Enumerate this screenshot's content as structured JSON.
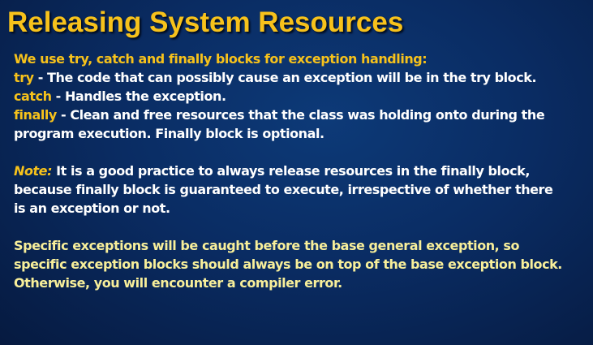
{
  "slide": {
    "title": "Releasing System Resources",
    "intro": "We use try, catch and finally blocks for exception handling:",
    "items": [
      {
        "keyword": "try",
        "text": " - The code that can possibly cause an exception will be in the try block."
      },
      {
        "keyword": "catch",
        "text": " - Handles the exception."
      },
      {
        "keyword": "finally",
        "text": " - Clean and free resources that the class was holding onto during the"
      }
    ],
    "finally_cont": "program execution. Finally block is optional.",
    "note": {
      "label": "Note:",
      "lines": [
        " It is a good practice to always release resources in the finally block,",
        "because finally block is guaranteed to execute, irrespective of whether there",
        "is an exception or not."
      ]
    },
    "specific": [
      "Specific exceptions will be caught before the base general exception, so",
      "specific exception blocks should always be on top of the base exception block.",
      "Otherwise, you will encounter a compiler error."
    ]
  },
  "colors": {
    "title": "#f7c21b",
    "keyword": "#f7c21b",
    "body": "#ffffff",
    "specific": "#f8ef9a",
    "background": "#0a2c63"
  }
}
